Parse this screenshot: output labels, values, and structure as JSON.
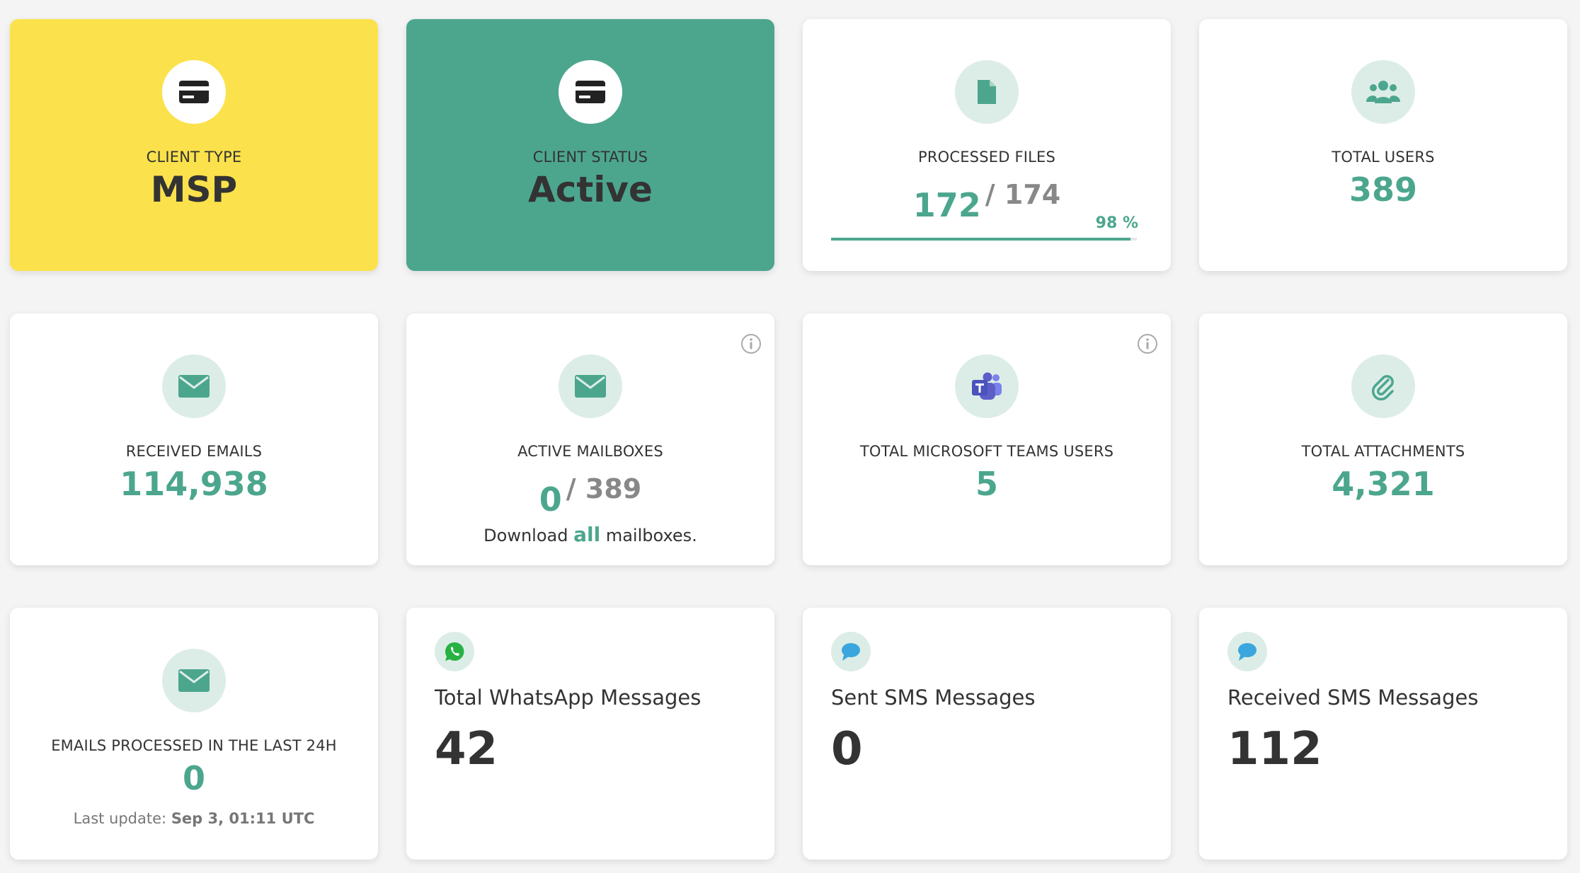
{
  "cards": {
    "client_type": {
      "label": "CLIENT TYPE",
      "value": "MSP",
      "icon": "credit-card-icon",
      "bg": "#fbe24c"
    },
    "client_status": {
      "label": "CLIENT STATUS",
      "value": "Active",
      "icon": "credit-card-icon",
      "bg": "#4ca68e"
    },
    "processed_files": {
      "label": "PROCESSED FILES",
      "processed": "172",
      "total": "/ 174",
      "percent_label": "98 %",
      "percent": 98,
      "icon": "file-icon"
    },
    "total_users": {
      "label": "TOTAL USERS",
      "value": "389",
      "icon": "users-icon"
    },
    "received_emails": {
      "label": "RECEIVED EMAILS",
      "value": "114,938",
      "icon": "envelope-icon"
    },
    "active_mailboxes": {
      "label": "ACTIVE MAILBOXES",
      "active": "0",
      "total": "/ 389",
      "download_prefix": "Download",
      "download_link": "all",
      "download_suffix": "mailboxes.",
      "icon": "envelope-icon"
    },
    "teams_users": {
      "label": "TOTAL MICROSOFT TEAMS USERS",
      "value": "5",
      "icon": "microsoft-teams-icon"
    },
    "attachments": {
      "label": "TOTAL ATTACHMENTS",
      "value": "4,321",
      "icon": "paperclip-icon"
    },
    "emails_24h": {
      "label": "EMAILS PROCESSED IN THE LAST 24H",
      "value": "0",
      "last_update_label": "Last update:",
      "last_update_value": "Sep 3, 01:11 UTC",
      "icon": "envelope-icon"
    },
    "whatsapp": {
      "title": "Total WhatsApp Messages",
      "value": "42",
      "icon": "whatsapp-icon"
    },
    "sms_sent": {
      "title": "Sent SMS Messages",
      "value": "0",
      "icon": "chat-bubble-icon"
    },
    "sms_received": {
      "title": "Received SMS Messages",
      "value": "112",
      "icon": "chat-bubble-icon"
    }
  },
  "colors": {
    "accent": "#4ca68e",
    "yellow": "#fbe24c",
    "icon_bg": "#dcede7",
    "muted": "#888888"
  }
}
